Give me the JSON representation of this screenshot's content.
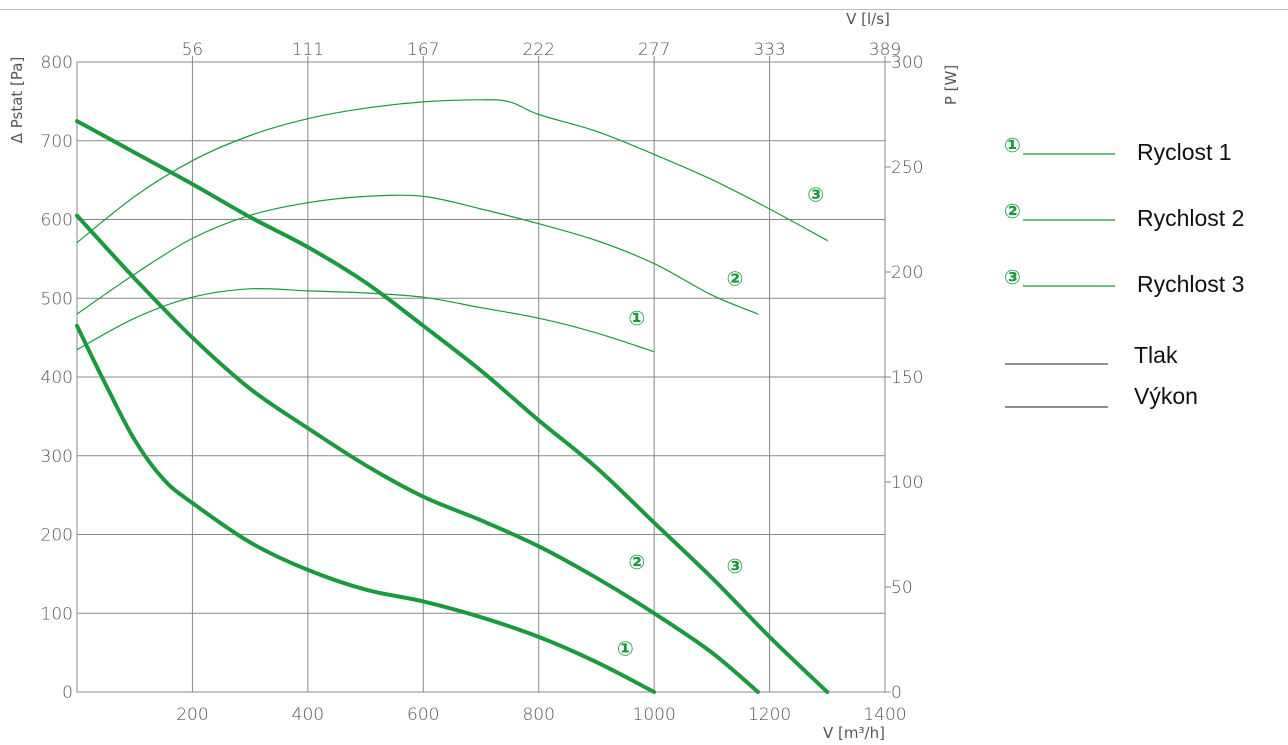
{
  "chart_data": {
    "type": "line",
    "xlabel_bottom": "V [m³/h]",
    "xlabel_top": "V [l/s]",
    "ylabel_left": "Δ Pstat [Pa]",
    "ylabel_right": "P [W]",
    "xlim": [
      0,
      1400
    ],
    "ylim_left": [
      0,
      800
    ],
    "ylim_right": [
      0,
      300
    ],
    "x_ticks_bottom": [
      "200",
      "400",
      "600",
      "800",
      "1000",
      "1200",
      "1400"
    ],
    "x_ticks_top": [
      "56",
      "111",
      "167",
      "222",
      "277",
      "333",
      "389"
    ],
    "y_ticks_left": [
      "0",
      "100",
      "200",
      "300",
      "400",
      "500",
      "600",
      "700",
      "800"
    ],
    "y_ticks_right": [
      "0",
      "50",
      "100",
      "150",
      "200",
      "250",
      "300"
    ],
    "grid": true,
    "legend": [
      {
        "marker": "①",
        "label": "Ryclost 1"
      },
      {
        "marker": "②",
        "label": "Rychlost 2"
      },
      {
        "marker": "③",
        "label": "Rychlost 3"
      },
      {
        "marker": "",
        "label": "Tlak"
      },
      {
        "marker": "",
        "label": "Výkon"
      }
    ],
    "legend_position": "right",
    "series": [
      {
        "group": "pressure",
        "marker": "①",
        "axis": "left",
        "x": [
          0,
          50,
          100,
          150,
          200,
          300,
          400,
          500,
          600,
          700,
          800,
          900,
          1000
        ],
        "y": [
          465,
          390,
          320,
          270,
          240,
          190,
          155,
          130,
          115,
          95,
          70,
          38,
          0
        ]
      },
      {
        "group": "pressure",
        "marker": "②",
        "axis": "left",
        "x": [
          0,
          100,
          200,
          300,
          400,
          500,
          600,
          700,
          800,
          900,
          1000,
          1100,
          1180
        ],
        "y": [
          605,
          525,
          450,
          385,
          335,
          288,
          248,
          218,
          185,
          145,
          100,
          50,
          0
        ]
      },
      {
        "group": "pressure",
        "marker": "③",
        "axis": "left",
        "x": [
          0,
          100,
          200,
          300,
          400,
          500,
          600,
          700,
          800,
          900,
          1000,
          1100,
          1200,
          1300
        ],
        "y": [
          725,
          685,
          645,
          603,
          565,
          520,
          465,
          408,
          345,
          285,
          215,
          145,
          70,
          0
        ]
      },
      {
        "group": "power",
        "marker": "①",
        "axis": "right",
        "x": [
          0,
          100,
          200,
          300,
          400,
          500,
          600,
          700,
          800,
          900,
          1000
        ],
        "y": [
          163,
          178,
          188,
          192,
          191,
          190,
          188,
          183,
          178,
          171,
          162
        ]
      },
      {
        "group": "power",
        "marker": "②",
        "axis": "right",
        "x": [
          0,
          100,
          200,
          300,
          400,
          500,
          600,
          700,
          800,
          900,
          1000,
          1100,
          1180
        ],
        "y": [
          180,
          199,
          216,
          227,
          233,
          236,
          236,
          230,
          223,
          215,
          204,
          189,
          180
        ]
      },
      {
        "group": "power",
        "marker": "③",
        "axis": "right",
        "x": [
          0,
          100,
          200,
          300,
          400,
          500,
          600,
          700,
          750,
          800,
          900,
          1000,
          1100,
          1200,
          1300
        ],
        "y": [
          214,
          236,
          253,
          265,
          273,
          278,
          281,
          282,
          281,
          275,
          267,
          256,
          244,
          230,
          215
        ]
      }
    ],
    "curve_labels": [
      {
        "marker": "①",
        "x": 950,
        "y": 55,
        "axis": "left"
      },
      {
        "marker": "②",
        "x": 970,
        "y": 165,
        "axis": "left"
      },
      {
        "marker": "③",
        "x": 1140,
        "y": 160,
        "axis": "left"
      },
      {
        "marker": "①",
        "x": 970,
        "y": 178,
        "axis": "right"
      },
      {
        "marker": "②",
        "x": 1140,
        "y": 197,
        "axis": "right"
      },
      {
        "marker": "③",
        "x": 1280,
        "y": 237,
        "axis": "right"
      }
    ],
    "colors": {
      "curve": "#1a9a3c",
      "grid": "#888888",
      "legend_black": "#222222"
    }
  }
}
